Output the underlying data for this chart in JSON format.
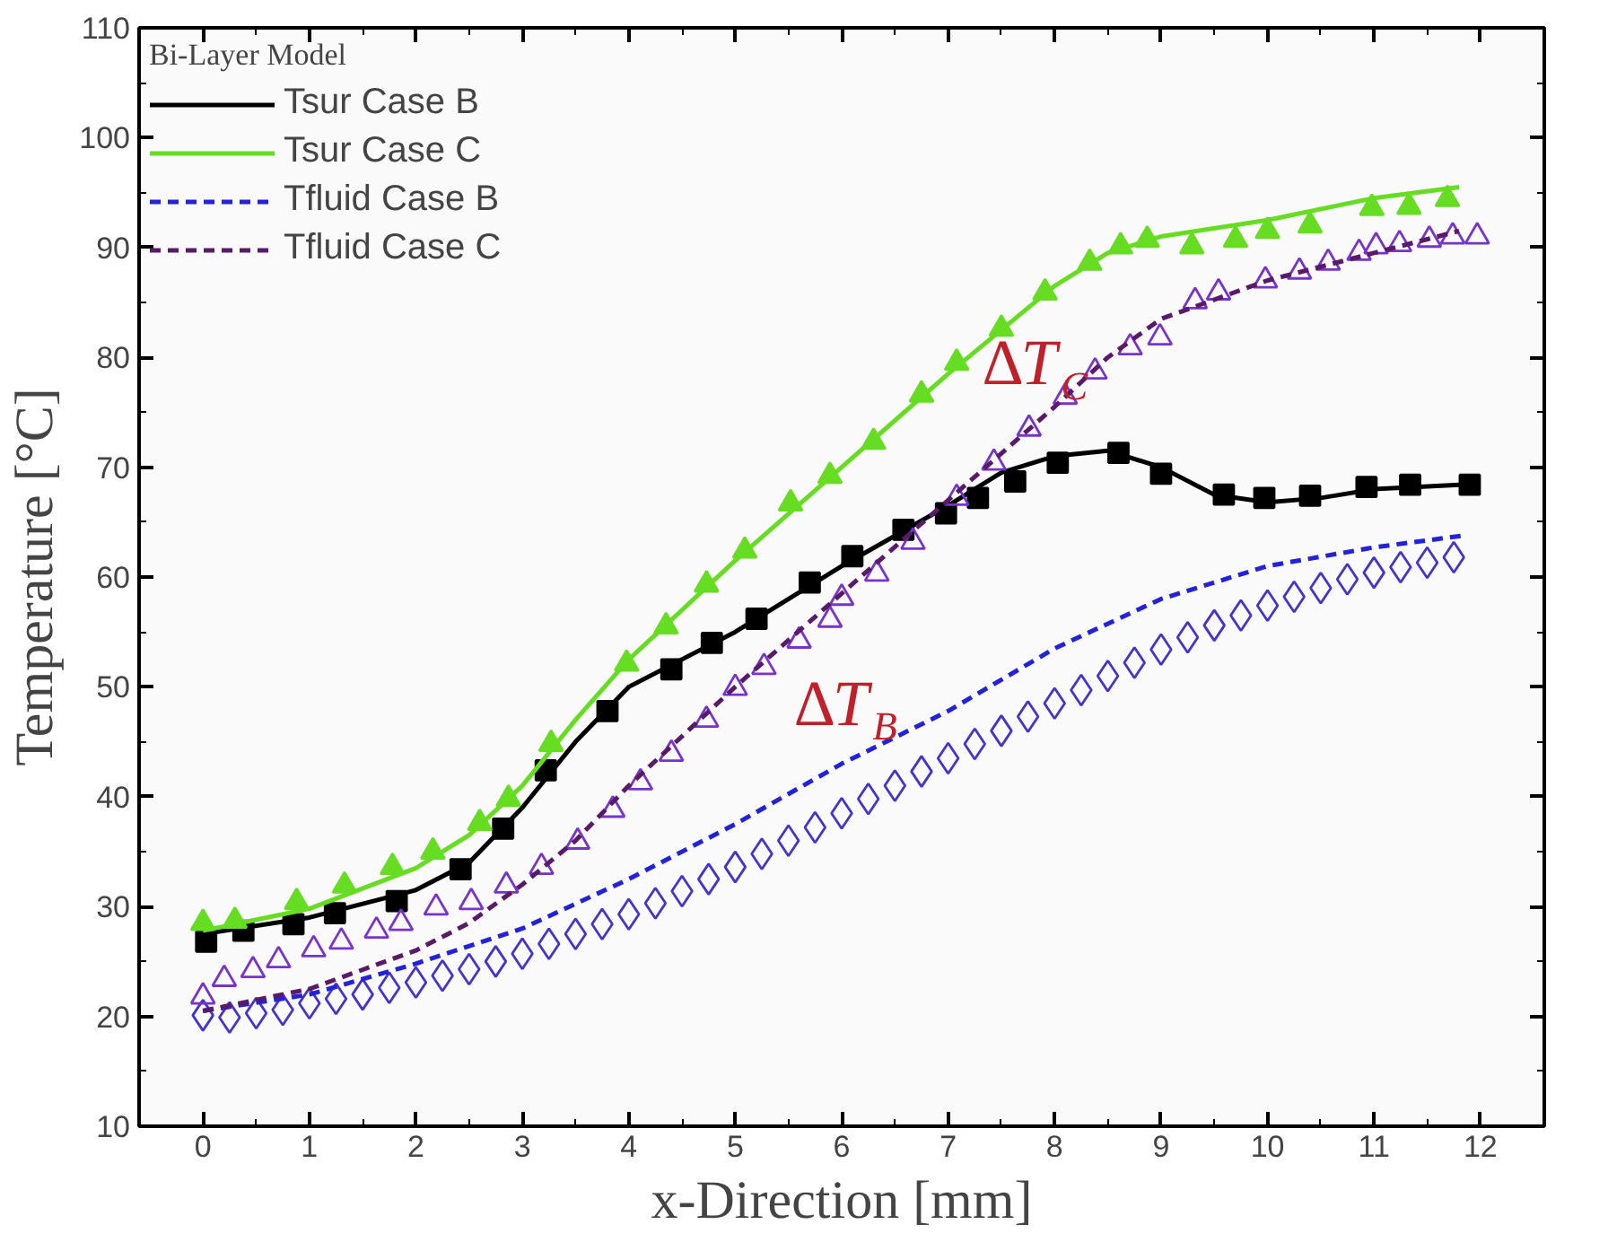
{
  "chart_data": {
    "type": "scatter",
    "xlabel": "x-Direction [mm]",
    "ylabel": "Temperature [°C]",
    "legend_title": "Bi-Layer Model",
    "xlim": [
      -0.6,
      12.6
    ],
    "ylim": [
      10,
      110
    ],
    "xticks": [
      0,
      1,
      2,
      3,
      4,
      5,
      6,
      7,
      8,
      9,
      10,
      11,
      12
    ],
    "yticks": [
      10,
      20,
      30,
      40,
      50,
      60,
      70,
      80,
      90,
      100,
      110
    ],
    "grid": false,
    "legend": "top left",
    "annotations": [
      "ΔT$_{C}$",
      "ΔT$_{B}$"
    ],
    "series": [
      {
        "type": "scatter",
        "marker": "square",
        "color": "#000000",
        "x": [
          0.03,
          0.38,
          0.85,
          1.24,
          1.82,
          2.42,
          2.82,
          3.22,
          3.8,
          4.4,
          4.78,
          5.2,
          5.7,
          6.1,
          6.58,
          6.98,
          7.28,
          7.63,
          8.03,
          8.6,
          9.0,
          9.59,
          9.97,
          10.4,
          10.93,
          11.34,
          11.9
        ],
        "values": [
          26.8,
          27.8,
          28.4,
          29.4,
          30.5,
          33.4,
          37.1,
          42.4,
          47.8,
          51.6,
          54.0,
          56.2,
          59.5,
          61.9,
          64.3,
          65.8,
          67.2,
          68.7,
          70.4,
          71.3,
          69.4,
          67.5,
          67.2,
          67.4,
          68.2,
          68.4,
          68.4
        ]
      },
      {
        "name": "Tsur Case B",
        "type": "line",
        "line_style": "solid",
        "color": "#000000",
        "x": [
          0,
          1,
          2,
          2.5,
          3,
          3.5,
          4,
          5,
          6,
          7,
          7.5,
          8,
          8.5,
          9,
          9.5,
          10,
          10.5,
          11,
          11.8
        ],
        "values": [
          27.5,
          29,
          31.5,
          34,
          39,
          45,
          50,
          55,
          61,
          66.5,
          69.5,
          71,
          71.5,
          70,
          67.5,
          66.8,
          67.2,
          68,
          68.4
        ]
      },
      {
        "marker": "triangle",
        "color": "#66dd22",
        "x": [
          0,
          0.3,
          0.88,
          1.33,
          1.78,
          2.16,
          2.6,
          2.87,
          3.27,
          3.98,
          4.35,
          4.73,
          5.09,
          5.52,
          5.89,
          6.3,
          6.75,
          7.08,
          7.5,
          7.91,
          8.33,
          8.62,
          8.87,
          9.29,
          9.7,
          10.0,
          10.4,
          10.98,
          11.33,
          11.69
        ],
        "values": [
          28.5,
          28.7,
          30.4,
          31.9,
          33.6,
          35,
          37.6,
          39.8,
          44.8,
          52.1,
          55.5,
          59.3,
          62.4,
          66.7,
          69.2,
          72.3,
          76.6,
          79.5,
          82.6,
          85.9,
          88.6,
          90.1,
          90.7,
          90.1,
          90.7,
          91.5,
          92.0,
          93.6,
          93.7,
          94.4
        ]
      },
      {
        "name": "Tsur Case C",
        "type": "line",
        "line_style": "solid",
        "color": "#66dd22",
        "x": [
          0,
          1,
          2,
          2.5,
          3,
          3.5,
          4,
          5,
          6,
          7,
          8,
          8.5,
          9,
          10,
          11,
          11.8
        ],
        "values": [
          27.8,
          29.8,
          33.5,
          36.5,
          41,
          47,
          52.5,
          61.5,
          70,
          78.5,
          86.5,
          89.5,
          91,
          92.5,
          94.5,
          95.5
        ]
      },
      {
        "type": "scatter",
        "marker": "diamond",
        "color": "#4433cc",
        "x": [
          0,
          0.25,
          0.5,
          0.75,
          1,
          1.25,
          1.5,
          1.75,
          2,
          2.25,
          2.5,
          2.75,
          3,
          3.25,
          3.5,
          3.75,
          4,
          4.25,
          4.5,
          4.75,
          5,
          5.25,
          5.5,
          5.75,
          6,
          6.25,
          6.5,
          6.75,
          7,
          7.25,
          7.5,
          7.75,
          8,
          8.25,
          8.5,
          8.75,
          9,
          9.25,
          9.5,
          9.75,
          10,
          10.25,
          10.5,
          10.75,
          11,
          11.25,
          11.5,
          11.75
        ],
        "values": [
          20.1,
          19.9,
          20.3,
          20.6,
          21.2,
          21.6,
          22,
          22.6,
          23.1,
          23.7,
          24.3,
          25,
          25.7,
          26.6,
          27.5,
          28.4,
          29.3,
          30.3,
          31.4,
          32.5,
          33.6,
          34.8,
          36,
          37.2,
          38.5,
          39.8,
          41,
          42.3,
          43.5,
          44.8,
          46,
          47.3,
          48.5,
          49.7,
          51,
          52.2,
          53.4,
          54.5,
          55.6,
          56.5,
          57.4,
          58.2,
          59,
          59.8,
          60.4,
          60.9,
          61.3,
          61.8
        ]
      },
      {
        "name": "Tfluid Case B",
        "type": "line",
        "line_style": "dashed",
        "color": "#2222dd",
        "x": [
          0,
          1,
          2,
          3,
          4,
          5,
          6,
          7,
          8,
          9,
          10,
          11,
          11.86
        ],
        "values": [
          20.5,
          22,
          24.8,
          28,
          32.5,
          37.5,
          43,
          47.8,
          53.5,
          58,
          61,
          62.7,
          63.8
        ]
      },
      {
        "marker": "triangle",
        "color": "#7733cc",
        "x": [
          0,
          0.2,
          0.47,
          0.71,
          1.04,
          1.3,
          1.63,
          1.86,
          2.19,
          2.52,
          2.85,
          3.18,
          3.52,
          3.85,
          4.11,
          4.4,
          4.73,
          5.0,
          5.27,
          5.6,
          5.89,
          6.0,
          6.33,
          6.67,
          7.08,
          7.43,
          7.76,
          8.1,
          8.38,
          8.71,
          8.99,
          9.32,
          9.54,
          9.98,
          10.3,
          10.57,
          10.86,
          11.02,
          11.24,
          11.52,
          11.74,
          11.97
        ],
        "values": [
          21.8,
          23.4,
          24.2,
          25.1,
          26.1,
          26.8,
          27.8,
          28.5,
          29.9,
          30.4,
          31.9,
          33.6,
          35.9,
          38.8,
          41.3,
          43.9,
          47,
          49.9,
          51.8,
          54.2,
          56.1,
          58.1,
          60.3,
          63.2,
          67.2,
          70.4,
          73.5,
          76.4,
          78.7,
          80.9,
          81.8,
          85.1,
          85.9,
          87,
          87.8,
          88.6,
          89.5,
          90.1,
          90.3,
          90.7,
          91,
          91
        ]
      },
      {
        "name": "Tfluid Case C",
        "type": "line",
        "line_style": "dashed",
        "color": "#5a1a6a",
        "x": [
          0,
          1,
          2,
          2.5,
          3,
          3.5,
          4,
          5,
          6,
          7,
          8,
          8.5,
          9,
          10,
          11,
          11.8
        ],
        "values": [
          20.5,
          22.5,
          26,
          28.5,
          32,
          36,
          41,
          50,
          58.5,
          67,
          75.5,
          80,
          83.5,
          87,
          89.5,
          91.5
        ]
      }
    ]
  }
}
